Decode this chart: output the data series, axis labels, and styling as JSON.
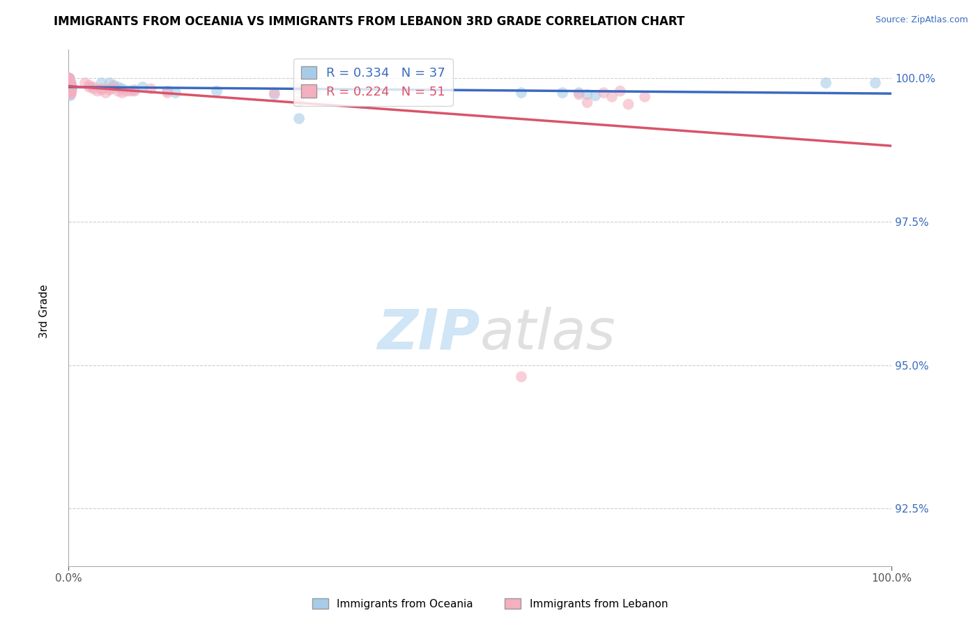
{
  "title": "IMMIGRANTS FROM OCEANIA VS IMMIGRANTS FROM LEBANON 3RD GRADE CORRELATION CHART",
  "source": "Source: ZipAtlas.com",
  "ylabel": "3rd Grade",
  "ytick_values": [
    0.925,
    0.95,
    0.975,
    1.0
  ],
  "ytick_labels": [
    "92.5%",
    "95.0%",
    "97.5%",
    "100.0%"
  ],
  "xtick_values": [
    0.0,
    1.0
  ],
  "xtick_labels": [
    "0.0%",
    "100.0%"
  ],
  "ymin": 0.915,
  "ymax": 1.005,
  "legend_blue_text": "R = 0.334   N = 37",
  "legend_pink_text": "R = 0.224   N = 51",
  "legend_blue_label": "Immigrants from Oceania",
  "legend_pink_label": "Immigrants from Lebanon",
  "blue_scatter_color": "#a8cce8",
  "pink_scatter_color": "#f4afc0",
  "blue_line_color": "#3a6abf",
  "pink_line_color": "#d9546a",
  "grid_color": "#cccccc",
  "oceania_x": [
    0.0005,
    0.0005,
    0.001,
    0.001,
    0.001,
    0.002,
    0.002,
    0.002,
    0.003,
    0.003,
    0.003,
    0.001,
    0.001,
    0.001,
    0.001,
    0.0015,
    0.002,
    0.002,
    0.04,
    0.05,
    0.055,
    0.06,
    0.065,
    0.08,
    0.09,
    0.12,
    0.13,
    0.25,
    0.28,
    0.55,
    0.6,
    0.62,
    0.63,
    0.64,
    0.92,
    0.98,
    0.18
  ],
  "oceania_y": [
    1.0,
    1.0,
    1.0,
    1.0,
    0.9995,
    0.9995,
    0.9993,
    0.9993,
    0.999,
    0.999,
    0.9988,
    0.9985,
    0.9983,
    0.998,
    0.9978,
    0.9975,
    0.9973,
    0.997,
    0.9992,
    0.9992,
    0.9988,
    0.9985,
    0.9982,
    0.998,
    0.9985,
    0.9978,
    0.9975,
    0.9972,
    0.993,
    0.9975,
    0.9975,
    0.9975,
    0.9972,
    0.997,
    0.9992,
    0.9992,
    0.9978
  ],
  "lebanon_x": [
    0.0005,
    0.0005,
    0.001,
    0.001,
    0.001,
    0.001,
    0.001,
    0.0015,
    0.0015,
    0.002,
    0.002,
    0.002,
    0.003,
    0.003,
    0.003,
    0.004,
    0.004,
    0.003,
    0.003,
    0.003,
    0.02,
    0.025,
    0.03,
    0.04,
    0.05,
    0.06,
    0.07,
    0.08,
    0.1,
    0.12,
    0.25,
    0.28,
    0.3,
    0.28,
    0.55,
    0.62,
    0.63,
    0.65,
    0.66,
    0.67,
    0.68,
    0.7,
    0.025,
    0.03,
    0.035,
    0.04,
    0.045,
    0.05,
    0.055,
    0.065,
    0.075
  ],
  "lebanon_y": [
    1.0,
    1.0,
    1.0,
    1.0,
    0.9995,
    0.9993,
    0.999,
    0.9992,
    0.999,
    0.9993,
    0.999,
    0.9988,
    0.9985,
    0.9983,
    0.998,
    0.9985,
    0.998,
    0.9978,
    0.9975,
    0.9973,
    0.9992,
    0.9988,
    0.9985,
    0.998,
    0.998,
    0.9978,
    0.9978,
    0.9978,
    0.9982,
    0.9975,
    0.9975,
    0.9982,
    0.9978,
    0.996,
    0.948,
    0.9972,
    0.9958,
    0.9975,
    0.9968,
    0.9978,
    0.9955,
    0.9968,
    0.9985,
    0.9982,
    0.9978,
    0.9982,
    0.9975,
    0.9982,
    0.9985,
    0.9975,
    0.9978
  ]
}
